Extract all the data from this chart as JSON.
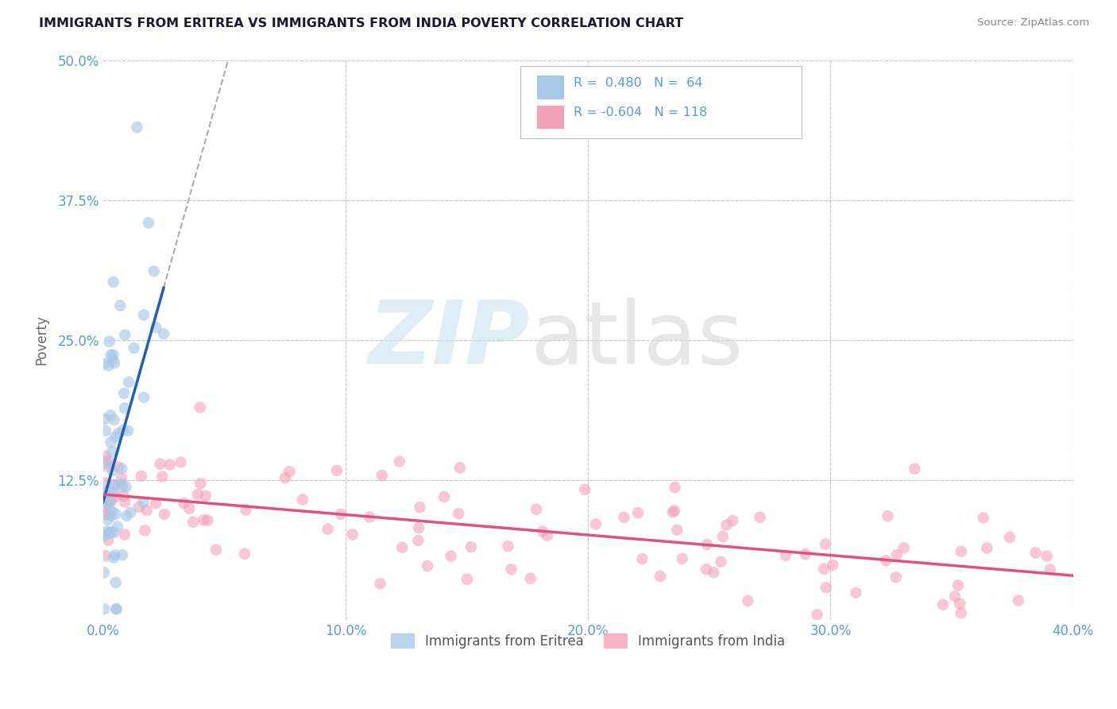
{
  "title": "IMMIGRANTS FROM ERITREA VS IMMIGRANTS FROM INDIA POVERTY CORRELATION CHART",
  "source": "Source: ZipAtlas.com",
  "ylabel": "Poverty",
  "xlim": [
    0.0,
    0.4
  ],
  "ylim": [
    0.0,
    0.5
  ],
  "xticks": [
    0.0,
    0.1,
    0.2,
    0.3,
    0.4
  ],
  "yticks": [
    0.125,
    0.25,
    0.375,
    0.5
  ],
  "xtick_labels": [
    "0.0%",
    "10.0%",
    "20.0%",
    "30.0%",
    "40.0%"
  ],
  "ytick_labels": [
    "12.5%",
    "25.0%",
    "37.5%",
    "50.0%"
  ],
  "axis_color": "#5b9bd5",
  "grid_color": "#c8c8c8",
  "series1_color": "#a8c8e8",
  "series2_color": "#f4a0b8",
  "trendline1_color": "#2060b0",
  "trendline2_color": "#e05080",
  "trendline1_dashed_color": "#aaaaaa"
}
